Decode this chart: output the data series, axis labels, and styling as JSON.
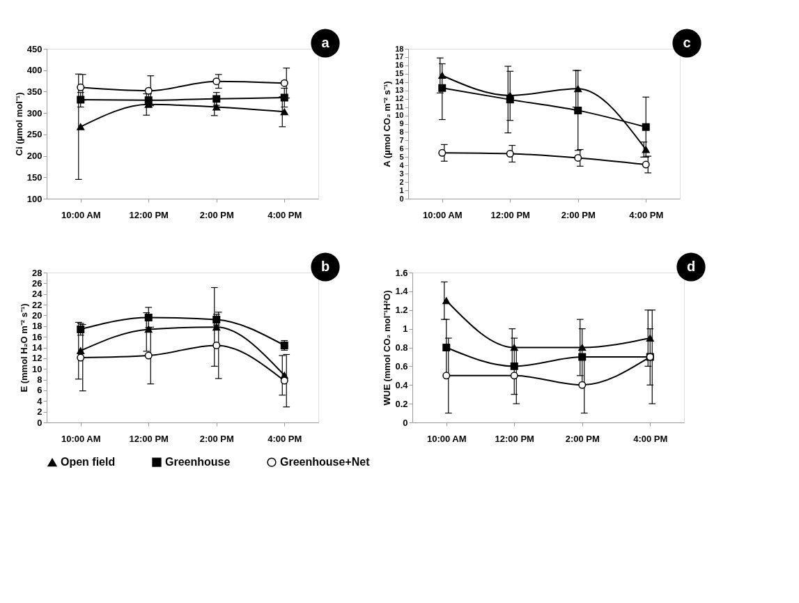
{
  "chart_data": [
    {
      "type": "line",
      "ylabel": "Ci (µmol mol⁻¹)",
      "categories": [
        "10:00 AM",
        "12:00 PM",
        "2:00 PM",
        "4:00 PM"
      ],
      "ylim": [
        100,
        450
      ],
      "yticks": [
        100,
        150,
        200,
        250,
        300,
        350,
        400,
        450
      ],
      "grid": false,
      "legend": "bottom",
      "line_style": "solid",
      "annotations": [
        "a"
      ],
      "series": [
        {
          "name": "Open field",
          "color": "#000000",
          "marker": "triangle",
          "values": [
            268,
            320,
            314,
            303
          ],
          "errors": [
            123,
            25,
            20,
            35
          ]
        },
        {
          "name": "Greenhouse",
          "color": "#000000",
          "marker": "square",
          "values": [
            331,
            330,
            333,
            336
          ],
          "errors": [
            17,
            15,
            15,
            22
          ]
        },
        {
          "name": "Greenhouse+Net",
          "color": "#000000",
          "marker": "circle",
          "values": [
            360,
            352,
            374,
            370
          ],
          "errors": [
            30,
            35,
            16,
            35
          ]
        }
      ]
    },
    {
      "type": "line",
      "ylabel": "A (µmol CO₂ m⁻² s⁻¹)",
      "categories": [
        "10:00 AM",
        "12:00 PM",
        "2:00 PM",
        "4:00 PM"
      ],
      "ylim": [
        0,
        18
      ],
      "yticks": [
        0,
        1,
        2,
        3,
        4,
        5,
        6,
        7,
        8,
        9,
        10,
        11,
        12,
        13,
        14,
        15,
        16,
        17,
        18
      ],
      "grid": false,
      "legend": "bottom",
      "line_style": "solid",
      "annotations": [
        "c"
      ],
      "series": [
        {
          "name": "Open field",
          "color": "#000000",
          "marker": "triangle",
          "values": [
            14.8,
            12.4,
            13.2,
            5.9
          ],
          "errors": [
            2.1,
            [
              7.9,
              15.9
            ],
            2.2,
            0.9
          ]
        },
        {
          "name": "Greenhouse",
          "color": "#000000",
          "marker": "square",
          "values": [
            13.3,
            11.9,
            10.6,
            8.6
          ],
          "errors": [
            [
              9.5,
              16.2
            ],
            [
              9.4,
              15.3
            ],
            4.8,
            3.6
          ]
        },
        {
          "name": "Greenhouse+Net",
          "color": "#000000",
          "marker": "circle",
          "values": [
            5.5,
            5.4,
            4.9,
            4.1
          ],
          "errors": [
            1,
            1,
            1,
            1
          ]
        }
      ]
    },
    {
      "type": "line",
      "ylabel": "E (mmol H₂O m⁻² s⁻¹)",
      "categories": [
        "10:00 AM",
        "12:00 PM",
        "2:00 PM",
        "4:00 PM"
      ],
      "ylim": [
        0,
        28
      ],
      "yticks": [
        0,
        2,
        4,
        6,
        8,
        10,
        12,
        14,
        16,
        18,
        20,
        22,
        24,
        26,
        28
      ],
      "grid": false,
      "legend": "bottom",
      "line_style": "solid",
      "annotations": [
        "b"
      ],
      "series": [
        {
          "name": "Open field",
          "color": "#000000",
          "marker": "triangle",
          "values": [
            13.4,
            17.4,
            17.8,
            8.8
          ],
          "errors": [
            [
              8.1,
              18.7
            ],
            [
              13.3,
              20.5
            ],
            [
              10.5,
              25.2
            ],
            3.7
          ]
        },
        {
          "name": "Greenhouse",
          "color": "#000000",
          "marker": "square",
          "values": [
            17.4,
            19.6,
            19.2,
            14.4
          ],
          "errors": [
            1.1,
            1.9,
            1,
            0.9
          ]
        },
        {
          "name": "Greenhouse+Net",
          "color": "#000000",
          "marker": "circle",
          "values": [
            12.1,
            12.5,
            14.4,
            7.8
          ],
          "errors": [
            6.2,
            5.3,
            6.2,
            4.9
          ]
        }
      ]
    },
    {
      "type": "line",
      "ylabel": "WUE (mmol CO₂ mol⁻¹H²O)",
      "categories": [
        "10:00 AM",
        "12:00 PM",
        "2:00 PM",
        "4:00 PM"
      ],
      "ylim": [
        0,
        1.6
      ],
      "yticks": [
        0,
        0.2,
        0.4,
        0.6,
        0.8,
        1,
        1.2,
        1.4,
        1.6
      ],
      "grid": false,
      "legend": "bottom",
      "line_style": "solid",
      "annotations": [
        "d"
      ],
      "series": [
        {
          "name": "Open field",
          "color": "#000000",
          "marker": "triangle",
          "values": [
            1.3,
            0.8,
            0.8,
            0.9
          ],
          "errors": [
            0.2,
            0.2,
            0.3,
            0.3
          ]
        },
        {
          "name": "Greenhouse",
          "color": "#000000",
          "marker": "square",
          "values": [
            0.8,
            0.6,
            0.7,
            0.7
          ],
          "errors": [
            0.3,
            0.3,
            0.3,
            0.3
          ]
        },
        {
          "name": "Greenhouse+Net",
          "color": "#000000",
          "marker": "circle",
          "values": [
            0.5,
            0.5,
            0.4,
            0.7
          ],
          "errors": [
            0.4,
            0.3,
            0.3,
            0.5
          ]
        }
      ]
    }
  ]
}
